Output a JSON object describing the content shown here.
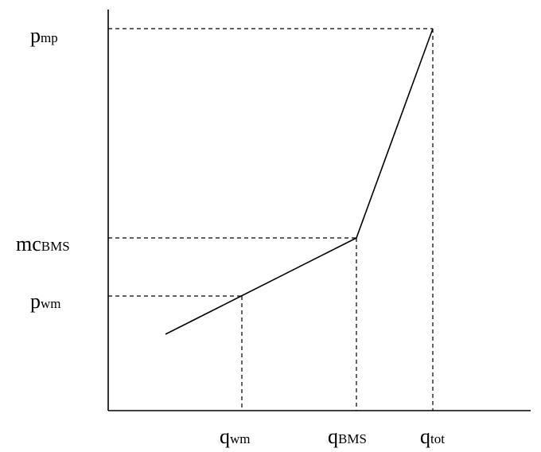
{
  "diagram": {
    "y_labels": {
      "p_mp": {
        "base": "p",
        "sub": "mp"
      },
      "mc_bms": {
        "base": "mc",
        "sub": "BMS"
      },
      "p_wm": {
        "base": "p",
        "sub": "wm"
      }
    },
    "x_labels": {
      "q_wm": {
        "base": "q",
        "sub": "wm"
      },
      "q_bms": {
        "base": "q",
        "sub": "BMS"
      },
      "q_tot": {
        "base": "q",
        "sub": "tot"
      }
    },
    "colors": {
      "line": "#000000",
      "background": "#ffffff"
    }
  }
}
